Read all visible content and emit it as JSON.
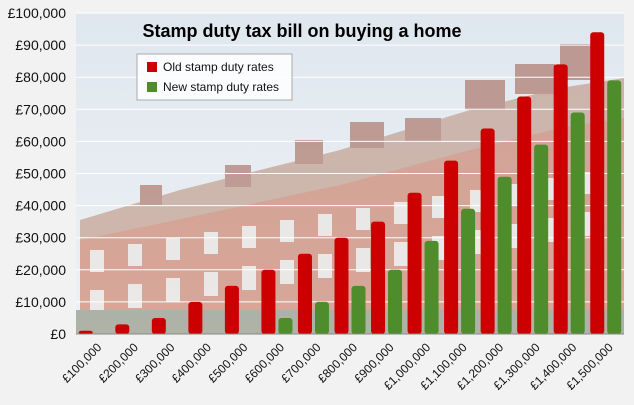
{
  "chart_data": {
    "type": "bar",
    "title": "Stamp duty tax bill on buying a home",
    "categories": [
      "£100,000",
      "£200,000",
      "£300,000",
      "£400,000",
      "£500,000",
      "£600,000",
      "£700,000",
      "£800,000",
      "£900,000",
      "£1,000,000",
      "£1,100,000",
      "£1,200,000",
      "£1,300,000",
      "£1,400,000",
      "£1,500,000"
    ],
    "series": [
      {
        "name": "Old stamp duty rates",
        "color": "#cc0000",
        "values": [
          1000,
          3000,
          5000,
          10000,
          15000,
          20000,
          25000,
          30000,
          35000,
          44000,
          54000,
          64000,
          74000,
          84000,
          94000
        ]
      },
      {
        "name": "New stamp duty rates",
        "color": "#4f8c2c",
        "values": [
          0,
          0,
          0,
          0,
          0,
          5000,
          10000,
          15000,
          20000,
          29000,
          39000,
          49000,
          59000,
          69000,
          79000
        ]
      }
    ],
    "y_ticks": [
      "£0",
      "£10,000",
      "£20,000",
      "£30,000",
      "£40,000",
      "£50,000",
      "£60,000",
      "£70,000",
      "£80,000",
      "£90,000",
      "£100,000"
    ],
    "ylim": [
      0,
      100000
    ],
    "legend_position": "top-left",
    "gridlines": true
  }
}
